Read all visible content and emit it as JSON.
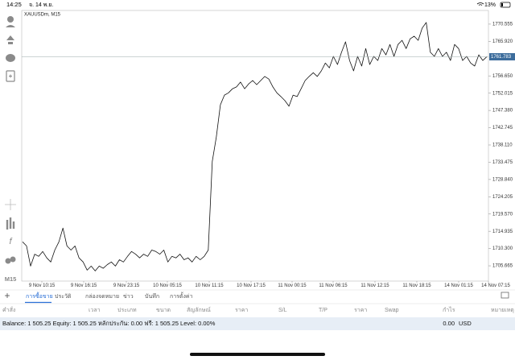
{
  "status_bar": {
    "time": "14:25",
    "date": "จ. 14 พ.ย.",
    "battery": "13%"
  },
  "chart_data": {
    "type": "line",
    "title": "XAUUSDm, M15",
    "timeframe": "M15",
    "color": "#111111",
    "values": [
      1712.1,
      1711.0,
      1705.6,
      1708.8,
      1708.2,
      1709.5,
      1707.8,
      1706.7,
      1709.9,
      1712.1,
      1715.8,
      1711.0,
      1709.9,
      1711.0,
      1707.8,
      1706.7,
      1704.5,
      1705.6,
      1704.3,
      1705.6,
      1705.0,
      1706.0,
      1706.7,
      1705.6,
      1707.3,
      1706.7,
      1708.2,
      1709.5,
      1708.8,
      1707.8,
      1708.8,
      1708.2,
      1709.9,
      1709.5,
      1708.8,
      1709.9,
      1706.7,
      1708.2,
      1707.8,
      1708.8,
      1707.3,
      1707.8,
      1706.7,
      1708.2,
      1707.3,
      1708.2,
      1709.9,
      1733.7,
      1740.2,
      1748.9,
      1751.5,
      1752.1,
      1753.2,
      1753.7,
      1755.0,
      1753.2,
      1754.5,
      1755.4,
      1754.3,
      1755.4,
      1756.5,
      1755.8,
      1753.7,
      1752.1,
      1751.1,
      1750.0,
      1748.5,
      1751.5,
      1751.1,
      1753.2,
      1755.4,
      1756.5,
      1757.5,
      1756.5,
      1758.0,
      1760.1,
      1758.8,
      1761.9,
      1759.7,
      1763.0,
      1765.8,
      1760.8,
      1758.0,
      1761.9,
      1759.3,
      1764.0,
      1759.7,
      1761.9,
      1760.8,
      1764.0,
      1762.3,
      1765.1,
      1761.9,
      1765.1,
      1766.2,
      1764.0,
      1766.6,
      1767.3,
      1766.2,
      1769.5,
      1771.0,
      1763.0,
      1761.9,
      1764.0,
      1761.9,
      1763.0,
      1760.8,
      1765.1,
      1764.0,
      1760.8,
      1761.9,
      1760.1,
      1759.3,
      1762.3,
      1760.8,
      1761.8
    ],
    "xlim": [
      0,
      115.4
    ],
    "xticks": [
      {
        "value": 4.8,
        "label": "9 Nov 10:15"
      },
      {
        "value": 15.2,
        "label": "9 Nov 16:15"
      },
      {
        "value": 25.8,
        "label": "9 Nov 23:15"
      },
      {
        "value": 36,
        "label": "10 Nov 05:15"
      },
      {
        "value": 46.4,
        "label": "10 Nov 11:15"
      },
      {
        "value": 56.8,
        "label": "10 Nov 17:15"
      },
      {
        "value": 67,
        "label": "11 Nov 00:15"
      },
      {
        "value": 77.2,
        "label": "11 Nov 06:15"
      },
      {
        "value": 87.6,
        "label": "11 Nov 12:15"
      },
      {
        "value": 98,
        "label": "11 Nov 18:15"
      },
      {
        "value": 108.4,
        "label": "14 Nov 01:15"
      },
      {
        "value": 118.8,
        "label": "14 Nov 07:15"
      }
    ],
    "ylim": [
      1702,
      1774
    ],
    "yticks": [
      1770.555,
      {
        "value": 1765.92,
        "label": "1765.920"
      },
      {
        "value": 1756.65,
        "label": "1756.650"
      },
      1752.015,
      {
        "value": 1747.38,
        "label": "1747.380"
      },
      1742.745,
      {
        "value": 1738.11,
        "label": "1738.110"
      },
      1733.475,
      {
        "value": 1728.84,
        "label": "1728.840"
      },
      1724.205,
      {
        "value": 1719.57,
        "label": "1719.570"
      },
      1714.935,
      {
        "value": 1710.3,
        "label": "1710.300"
      },
      1705.665
    ],
    "current_price": 1761.783,
    "current_price_color": "#3d6d9c"
  },
  "tabs": [
    "การซื้อขาย",
    "ประวัติ",
    "กล่องจดหมาย",
    "ข่าว",
    "บันทึก",
    "การตั้งค่า"
  ],
  "columns": [
    "คำสั่ง",
    "เวลา",
    "ประเภท",
    "ขนาด",
    "สัญลักษณ์",
    "ราคา",
    "S/L",
    "T/P",
    "ราคา",
    "Swap",
    "กำไร",
    "หมายเหตุ"
  ],
  "terminal": {
    "balance_line": "Balance: 1 505.25 Equity: 1 505.25 หลักประกัน: 0.00 ฟรี: 1 505.25 Level: 0.00%",
    "total_profit": "0.00",
    "currency": "USD"
  }
}
